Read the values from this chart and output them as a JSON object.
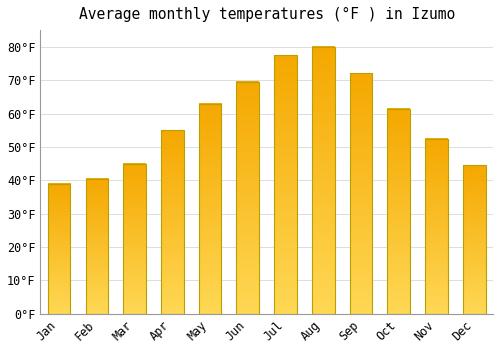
{
  "title": "Average monthly temperatures (°F ) in Izumo",
  "months": [
    "Jan",
    "Feb",
    "Mar",
    "Apr",
    "May",
    "Jun",
    "Jul",
    "Aug",
    "Sep",
    "Oct",
    "Nov",
    "Dec"
  ],
  "values": [
    39.0,
    40.5,
    45.0,
    55.0,
    63.0,
    69.5,
    77.5,
    80.0,
    72.0,
    61.5,
    52.5,
    44.5
  ],
  "bar_color_dark": "#F5A800",
  "bar_color_light": "#FFD855",
  "bar_edge_color": "#B8860B",
  "yticks": [
    0,
    10,
    20,
    30,
    40,
    50,
    60,
    70,
    80
  ],
  "ytick_labels": [
    "0°F",
    "10°F",
    "20°F",
    "30°F",
    "40°F",
    "50°F",
    "60°F",
    "70°F",
    "80°F"
  ],
  "ylim": [
    0,
    85
  ],
  "background_color": "#FFFFFF",
  "grid_color": "#DDDDDD",
  "title_fontsize": 10.5,
  "tick_fontsize": 8.5,
  "font_family": "monospace"
}
